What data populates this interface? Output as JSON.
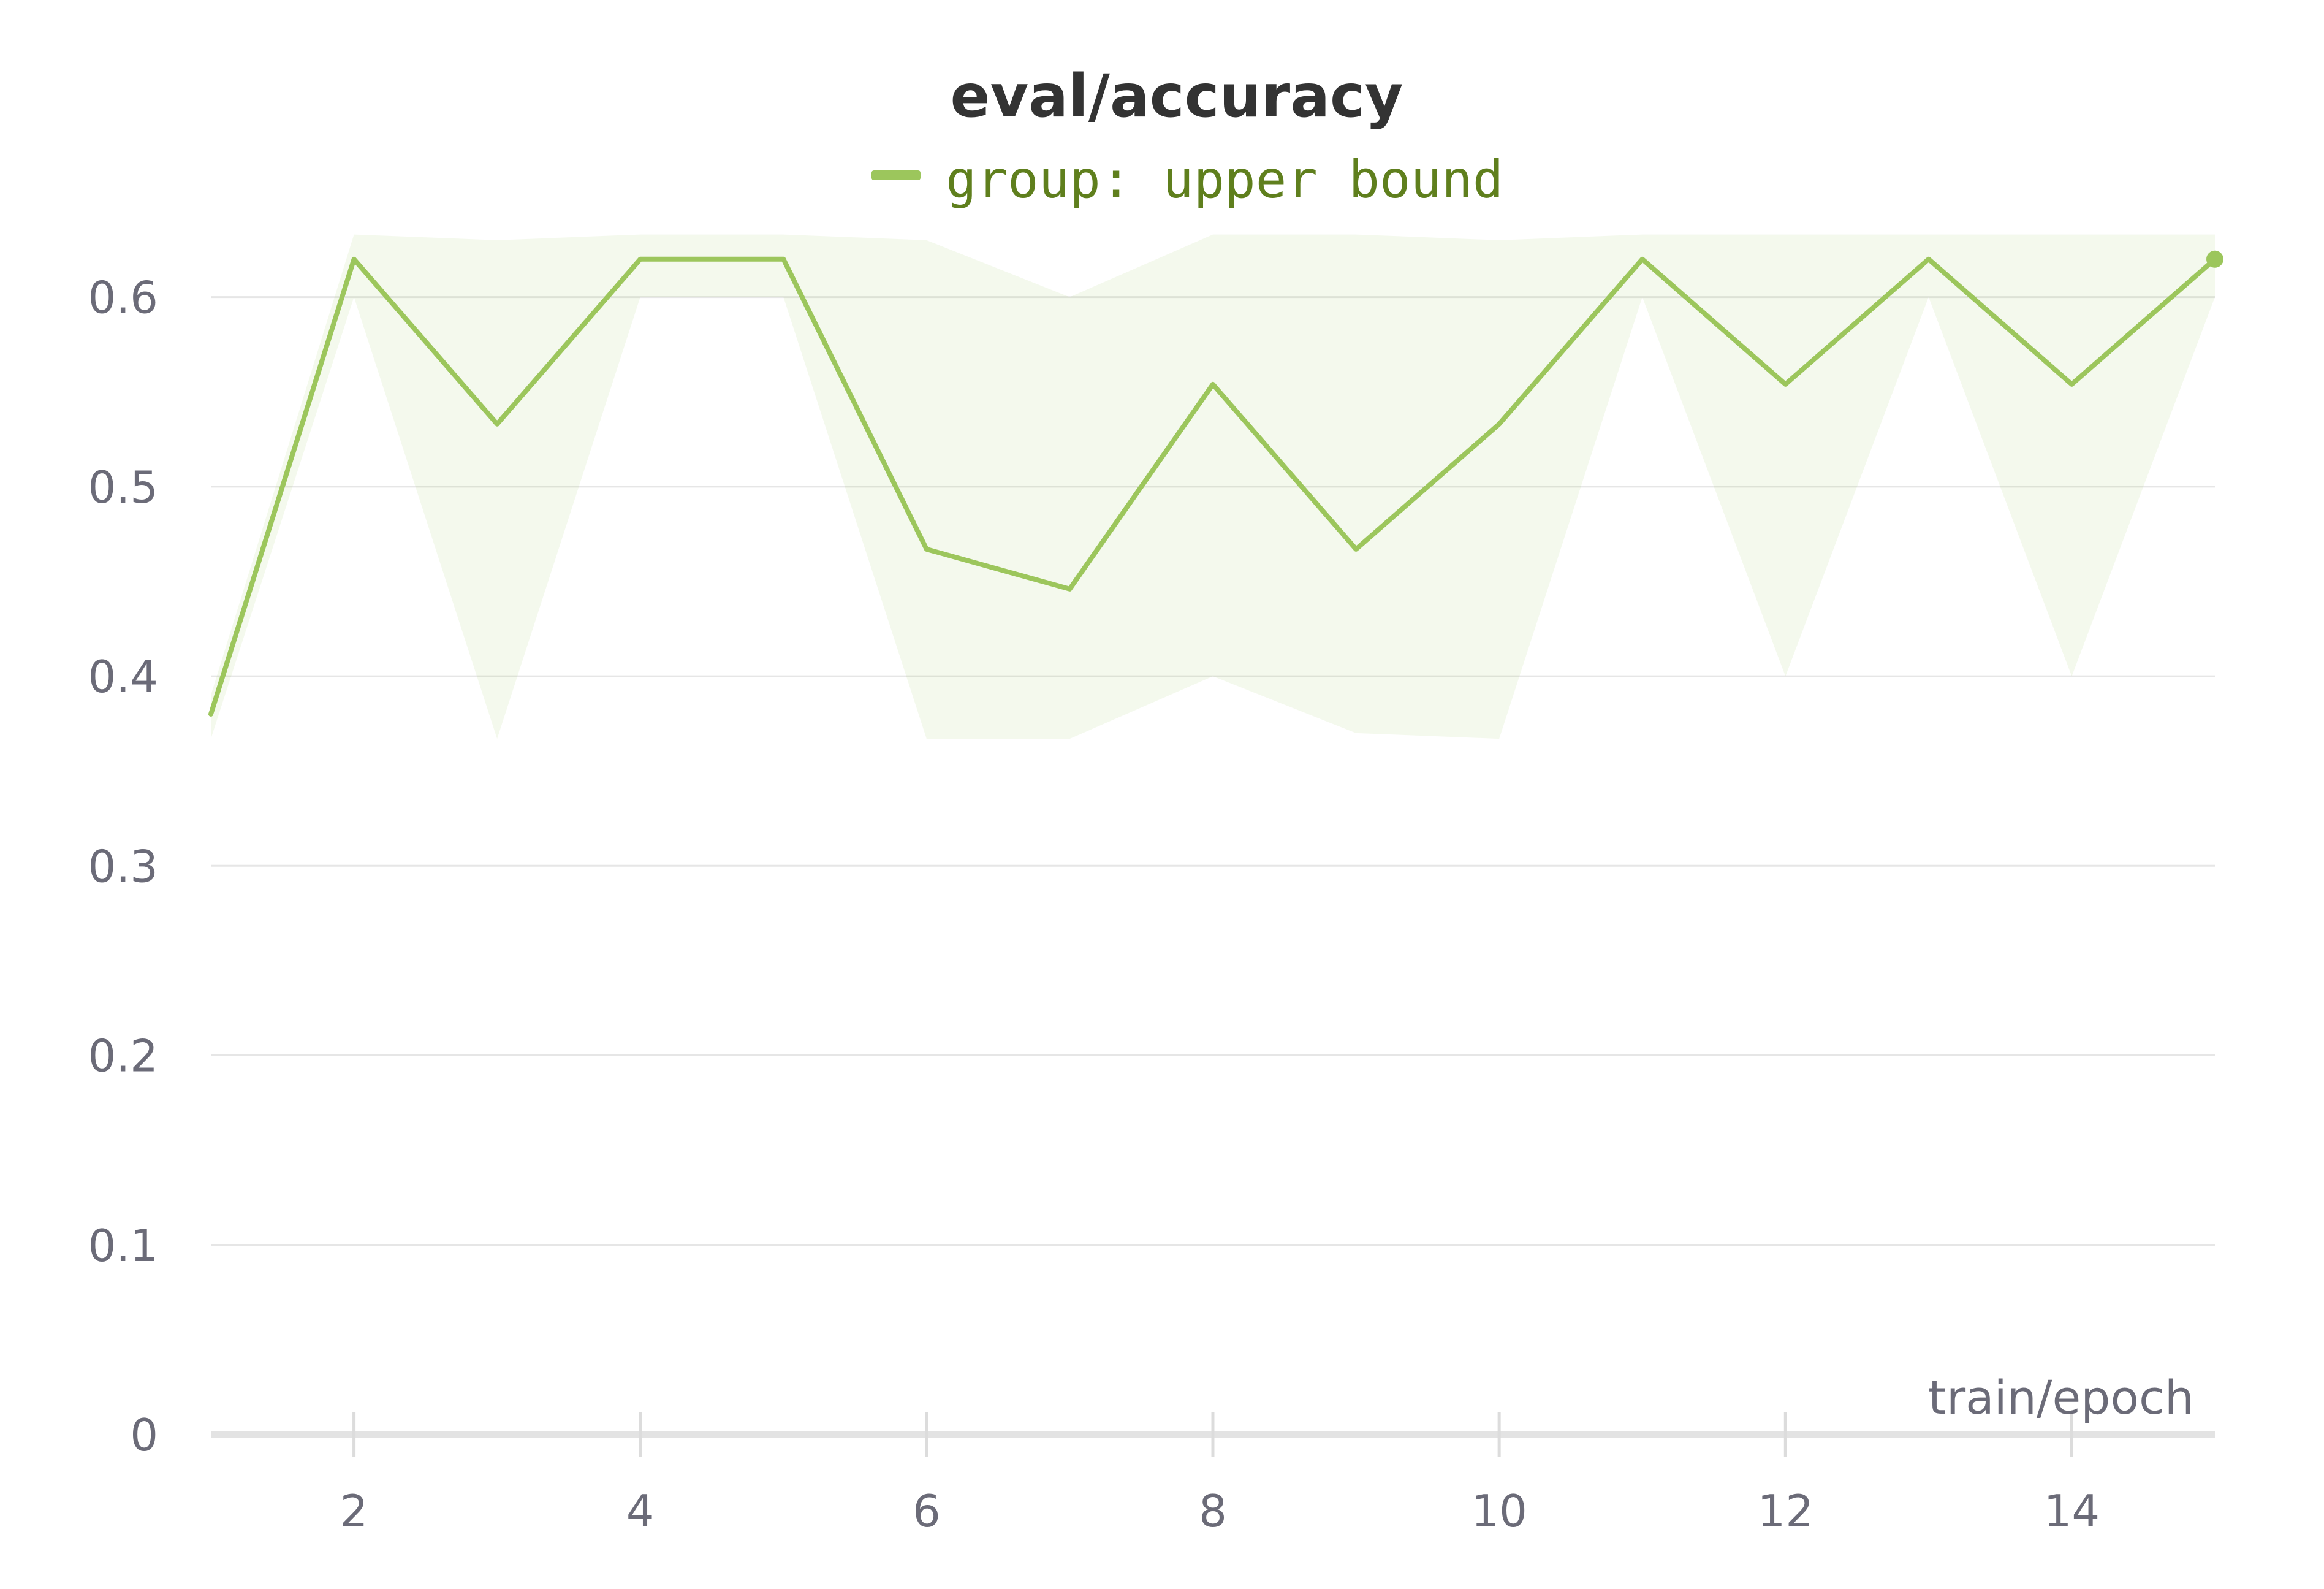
{
  "chart_data": {
    "type": "line",
    "title": "eval/accuracy",
    "xlabel": "train/epoch",
    "ylabel": "",
    "xlim": [
      1,
      15
    ],
    "ylim": [
      0,
      0.65
    ],
    "x_ticks": [
      2,
      4,
      6,
      8,
      10,
      12,
      14
    ],
    "y_ticks": [
      0,
      0.1,
      0.2,
      0.3,
      0.4,
      0.5,
      0.6
    ],
    "y_tick_labels": [
      "0",
      "0.1",
      "0.2",
      "0.3",
      "0.4",
      "0.5",
      "0.6"
    ],
    "x_tick_labels": [
      "2",
      "4",
      "6",
      "8",
      "10",
      "12",
      "14"
    ],
    "grid": true,
    "legend_position": "top-center",
    "series": [
      {
        "name": "group: upper bound",
        "color": "#9cc65c",
        "x": [
          1,
          2,
          3,
          4,
          5,
          6,
          7,
          8,
          9,
          10,
          11,
          12,
          13,
          14,
          15
        ],
        "values": [
          0.38,
          0.62,
          0.533,
          0.62,
          0.62,
          0.467,
          0.446,
          0.554,
          0.467,
          0.533,
          0.62,
          0.554,
          0.62,
          0.554,
          0.62
        ],
        "band_upper": [
          0.39,
          0.633,
          0.63,
          0.633,
          0.633,
          0.63,
          0.6,
          0.633,
          0.633,
          0.63,
          0.633,
          0.633,
          0.633,
          0.633,
          0.633
        ],
        "band_lower": [
          0.367,
          0.6,
          0.367,
          0.6,
          0.6,
          0.367,
          0.367,
          0.4,
          0.37,
          0.367,
          0.6,
          0.4,
          0.6,
          0.4,
          0.6
        ]
      }
    ]
  }
}
